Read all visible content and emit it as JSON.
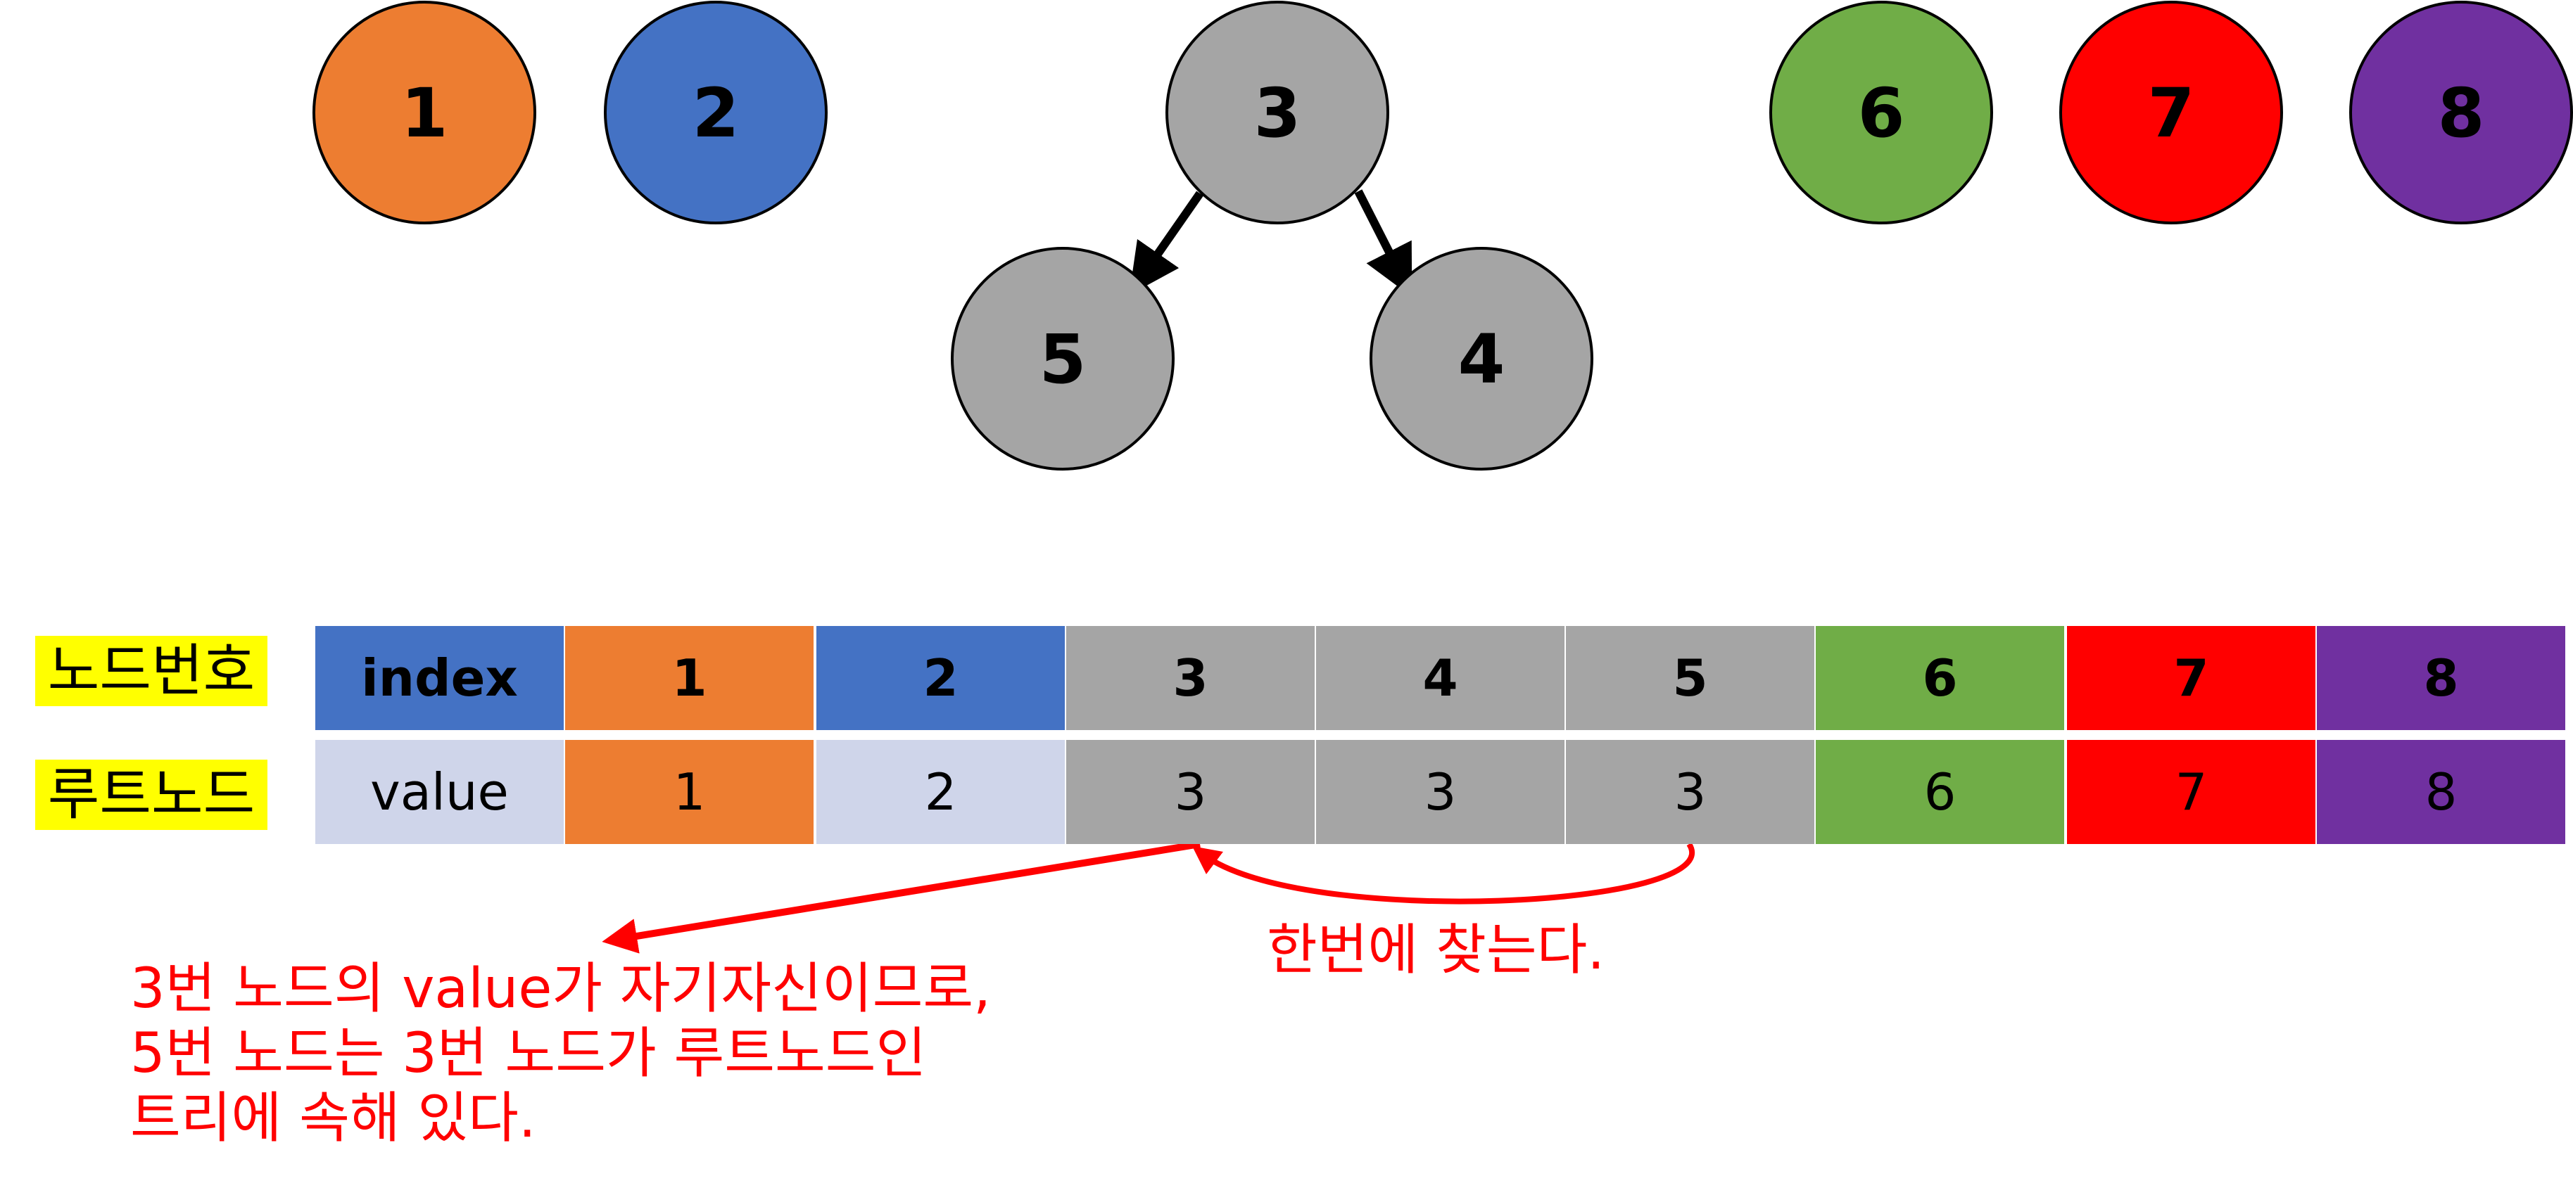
{
  "nodes": [
    {
      "label": "1",
      "color": "#ED7D31"
    },
    {
      "label": "2",
      "color": "#4472C4"
    },
    {
      "label": "3",
      "color": "#A5A5A5"
    },
    {
      "label": "5",
      "color": "#A5A5A5"
    },
    {
      "label": "4",
      "color": "#A5A5A5"
    },
    {
      "label": "6",
      "color": "#70AD47"
    },
    {
      "label": "7",
      "color": "#FF0000"
    },
    {
      "label": "8",
      "color": "#7030A0"
    }
  ],
  "edges": [
    {
      "from": "3",
      "to": "5"
    },
    {
      "from": "3",
      "to": "4"
    }
  ],
  "table": {
    "row_labels": [
      "노드번호",
      "루트노드"
    ],
    "index_header": "index",
    "value_header": "value",
    "indices": [
      "1",
      "2",
      "3",
      "4",
      "5",
      "6",
      "7",
      "8"
    ],
    "values": [
      "1",
      "2",
      "3",
      "3",
      "3",
      "6",
      "7",
      "8"
    ],
    "index_colors": [
      "#4472C4",
      "#ED7D31",
      "#4472C4",
      "#A5A5A5",
      "#A5A5A5",
      "#A5A5A5",
      "#70AD47",
      "#FF0000",
      "#7030A0"
    ],
    "value_colors": [
      "#CFD5EA",
      "#ED7D31",
      "#CFD5EA",
      "#A5A5A5",
      "#A5A5A5",
      "#A5A5A5",
      "#70AD47",
      "#FF0000",
      "#7030A0"
    ]
  },
  "annotations": {
    "found_once": "한번에 찾는다.",
    "explanation": [
      "3번 노드의 value가 자기자신이므로,",
      "5번 노드는 3번 노드가 루트노드인",
      "트리에 속해 있다."
    ]
  },
  "accent_color": "#FF0000"
}
